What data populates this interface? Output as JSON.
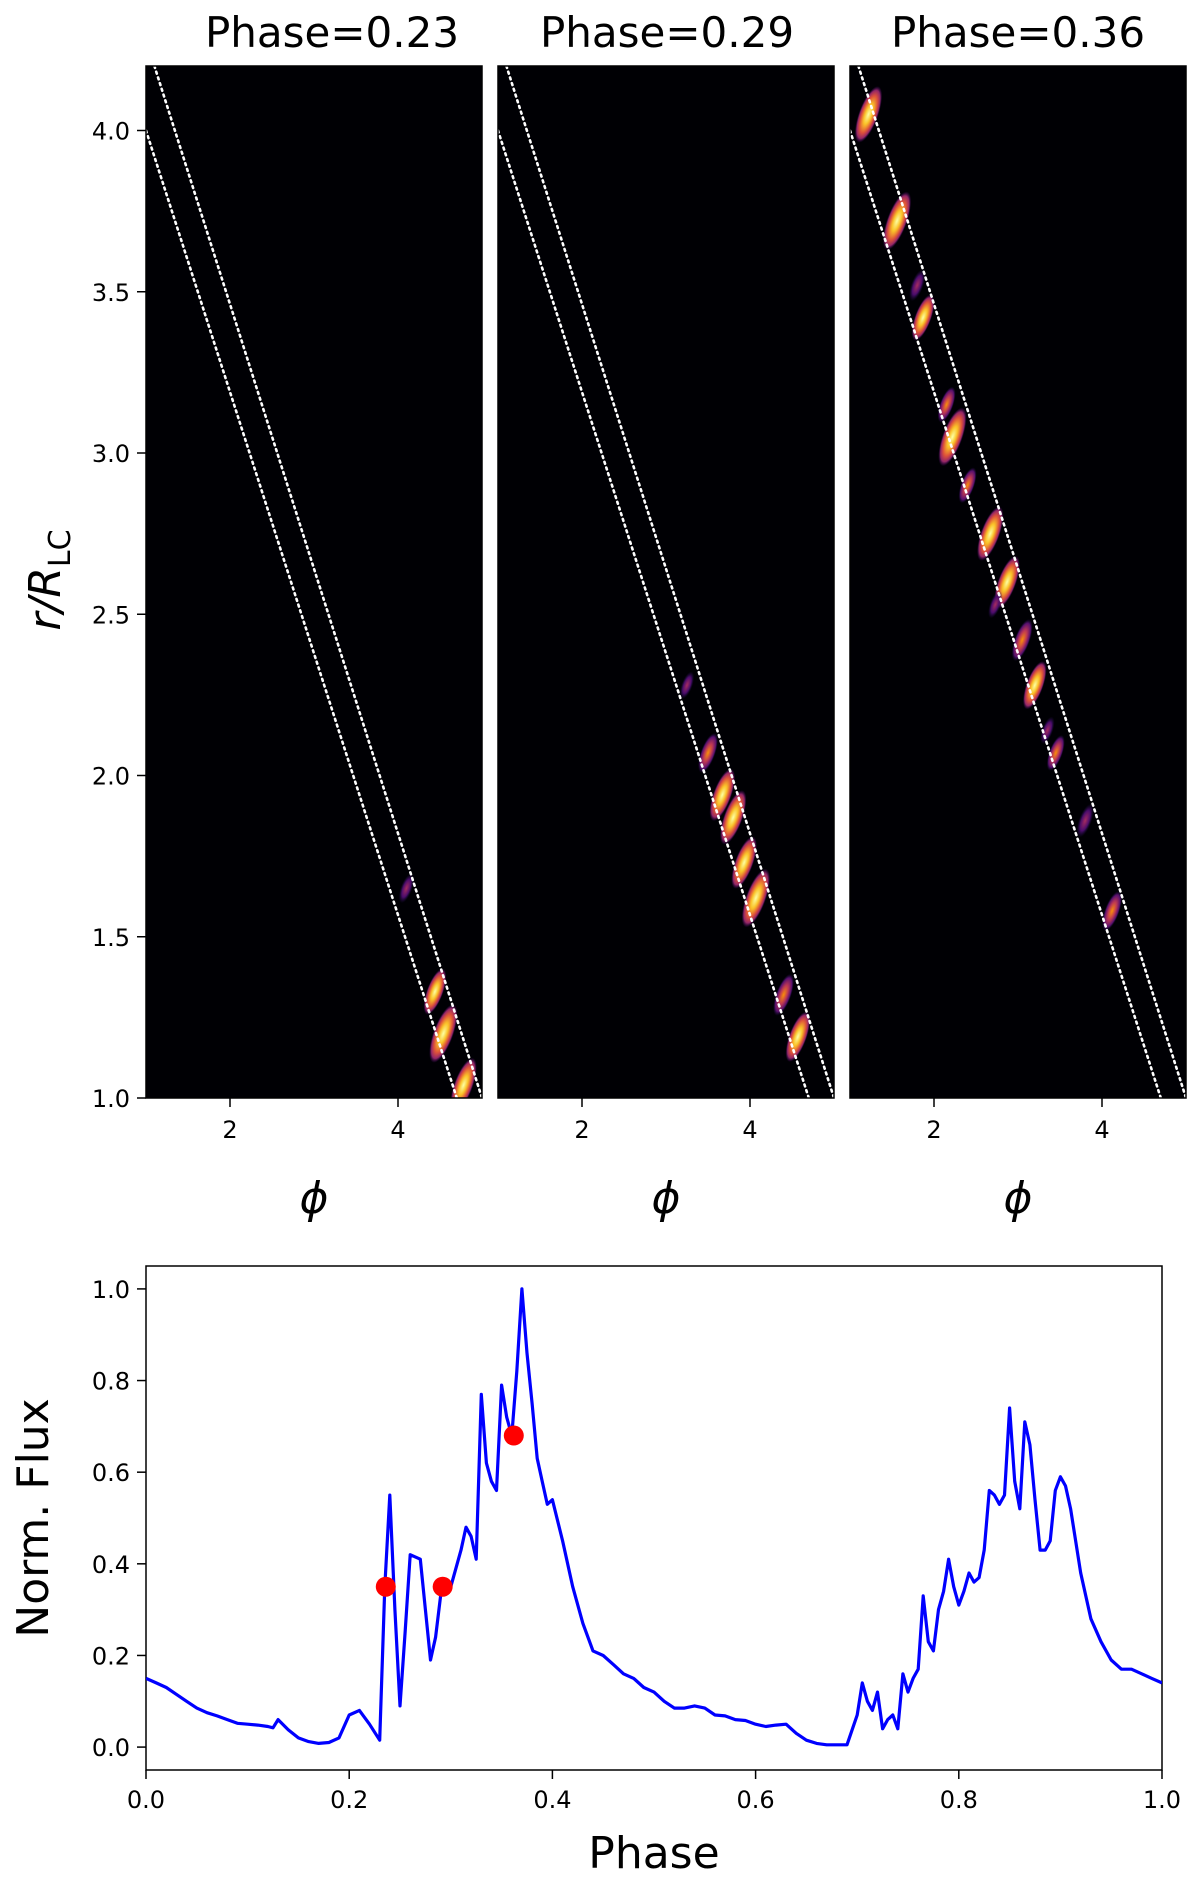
{
  "chart_data": [
    {
      "type": "heatmap",
      "title": "Phase=0.23",
      "xlabel": "ϕ",
      "ylabel_main": "r/R",
      "ylabel_sub": "LC",
      "xlim": [
        1.0,
        5.0
      ],
      "ylim": [
        1.0,
        4.2
      ],
      "xticks": [
        2,
        4
      ],
      "yticks": [
        1.0,
        1.5,
        2.0,
        2.5,
        3.0,
        3.5,
        4.0
      ],
      "ytick_labels": [
        "1.0",
        "1.5",
        "2.0",
        "2.5",
        "3.0",
        "3.5",
        "4.0"
      ],
      "background": "#000004",
      "guide_lines": [
        {
          "from": [
            1.1,
            4.2
          ],
          "to": [
            5.0,
            1.0
          ]
        },
        {
          "from": [
            1.0,
            4.0
          ],
          "to": [
            4.7,
            1.0
          ]
        }
      ],
      "hotspots": [
        {
          "phi": 4.1,
          "r": 1.65,
          "intensity": 0.3
        },
        {
          "phi": 4.44,
          "r": 1.33,
          "intensity": 0.7
        },
        {
          "phi": 4.54,
          "r": 1.2,
          "intensity": 1.0
        },
        {
          "phi": 4.78,
          "r": 1.04,
          "intensity": 0.9
        }
      ]
    },
    {
      "type": "heatmap",
      "title": "Phase=0.29",
      "xlabel": "ϕ",
      "xlim": [
        1.0,
        5.0
      ],
      "ylim": [
        1.0,
        4.2
      ],
      "xticks": [
        2,
        4
      ],
      "background": "#000004",
      "guide_lines": [
        {
          "from": [
            1.1,
            4.2
          ],
          "to": [
            5.0,
            1.0
          ]
        },
        {
          "from": [
            1.0,
            4.0
          ],
          "to": [
            4.7,
            1.0
          ]
        }
      ],
      "hotspots": [
        {
          "phi": 3.25,
          "r": 2.28,
          "intensity": 0.25
        },
        {
          "phi": 3.5,
          "r": 2.07,
          "intensity": 0.55
        },
        {
          "phi": 3.67,
          "r": 1.94,
          "intensity": 0.85
        },
        {
          "phi": 3.8,
          "r": 1.87,
          "intensity": 0.9
        },
        {
          "phi": 3.93,
          "r": 1.73,
          "intensity": 0.85
        },
        {
          "phi": 4.07,
          "r": 1.62,
          "intensity": 1.0
        },
        {
          "phi": 4.4,
          "r": 1.32,
          "intensity": 0.6
        },
        {
          "phi": 4.57,
          "r": 1.19,
          "intensity": 0.8
        }
      ]
    },
    {
      "type": "heatmap",
      "title": "Phase=0.36",
      "xlabel": "ϕ",
      "xlim": [
        1.0,
        5.0
      ],
      "ylim": [
        1.0,
        4.2
      ],
      "xticks": [
        2,
        4
      ],
      "background": "#000004",
      "guide_lines": [
        {
          "from": [
            1.1,
            4.2
          ],
          "to": [
            5.0,
            1.0
          ]
        },
        {
          "from": [
            1.0,
            4.0
          ],
          "to": [
            4.7,
            1.0
          ]
        }
      ],
      "hotspots": [
        {
          "phi": 1.22,
          "r": 4.05,
          "intensity": 0.95
        },
        {
          "phi": 1.56,
          "r": 3.72,
          "intensity": 1.0
        },
        {
          "phi": 1.8,
          "r": 3.52,
          "intensity": 0.35
        },
        {
          "phi": 1.87,
          "r": 3.42,
          "intensity": 0.7
        },
        {
          "phi": 2.15,
          "r": 3.15,
          "intensity": 0.45
        },
        {
          "phi": 2.22,
          "r": 3.05,
          "intensity": 1.0
        },
        {
          "phi": 2.4,
          "r": 2.9,
          "intensity": 0.45
        },
        {
          "phi": 2.67,
          "r": 2.75,
          "intensity": 0.9
        },
        {
          "phi": 2.87,
          "r": 2.6,
          "intensity": 0.85
        },
        {
          "phi": 2.73,
          "r": 2.53,
          "intensity": 0.25
        },
        {
          "phi": 3.05,
          "r": 2.42,
          "intensity": 0.6
        },
        {
          "phi": 3.2,
          "r": 2.28,
          "intensity": 0.75
        },
        {
          "phi": 3.35,
          "r": 2.14,
          "intensity": 0.25
        },
        {
          "phi": 3.45,
          "r": 2.07,
          "intensity": 0.45
        },
        {
          "phi": 3.8,
          "r": 1.86,
          "intensity": 0.4
        },
        {
          "phi": 4.12,
          "r": 1.58,
          "intensity": 0.55
        }
      ]
    },
    {
      "type": "line",
      "xlabel": "Phase",
      "ylabel": "Norm. Flux",
      "xlim": [
        0.0,
        1.0
      ],
      "ylim": [
        -0.05,
        1.05
      ],
      "xticks": [
        0.0,
        0.2,
        0.4,
        0.6,
        0.8,
        1.0
      ],
      "xtick_labels": [
        "0.0",
        "0.2",
        "0.4",
        "0.6",
        "0.8",
        "1.0"
      ],
      "yticks": [
        0.0,
        0.2,
        0.4,
        0.6,
        0.8,
        1.0
      ],
      "ytick_labels": [
        "0.0",
        "0.2",
        "0.4",
        "0.6",
        "0.8",
        "1.0"
      ],
      "line_color": "#0000ff",
      "marker_color": "#ff0000",
      "x": [
        0.0,
        0.01,
        0.02,
        0.03,
        0.04,
        0.05,
        0.06,
        0.07,
        0.08,
        0.09,
        0.1,
        0.11,
        0.12,
        0.125,
        0.13,
        0.14,
        0.15,
        0.16,
        0.17,
        0.18,
        0.19,
        0.2,
        0.21,
        0.22,
        0.23,
        0.235,
        0.24,
        0.245,
        0.25,
        0.255,
        0.26,
        0.27,
        0.275,
        0.28,
        0.285,
        0.29,
        0.3,
        0.31,
        0.315,
        0.32,
        0.325,
        0.33,
        0.335,
        0.34,
        0.345,
        0.35,
        0.355,
        0.36,
        0.365,
        0.37,
        0.375,
        0.38,
        0.385,
        0.39,
        0.395,
        0.4,
        0.41,
        0.42,
        0.43,
        0.44,
        0.45,
        0.46,
        0.47,
        0.48,
        0.49,
        0.5,
        0.51,
        0.52,
        0.53,
        0.54,
        0.55,
        0.56,
        0.57,
        0.58,
        0.59,
        0.6,
        0.61,
        0.62,
        0.63,
        0.64,
        0.65,
        0.66,
        0.67,
        0.68,
        0.69,
        0.7,
        0.705,
        0.71,
        0.715,
        0.72,
        0.725,
        0.73,
        0.735,
        0.74,
        0.745,
        0.75,
        0.755,
        0.76,
        0.765,
        0.77,
        0.775,
        0.78,
        0.785,
        0.79,
        0.795,
        0.8,
        0.805,
        0.81,
        0.815,
        0.82,
        0.825,
        0.83,
        0.835,
        0.84,
        0.845,
        0.85,
        0.855,
        0.86,
        0.865,
        0.87,
        0.875,
        0.88,
        0.885,
        0.89,
        0.895,
        0.9,
        0.905,
        0.91,
        0.92,
        0.93,
        0.94,
        0.95,
        0.96,
        0.97,
        0.98,
        0.99,
        1.0
      ],
      "y": [
        0.15,
        0.14,
        0.13,
        0.115,
        0.1,
        0.085,
        0.075,
        0.068,
        0.06,
        0.052,
        0.05,
        0.048,
        0.045,
        0.042,
        0.06,
        0.038,
        0.02,
        0.012,
        0.008,
        0.01,
        0.02,
        0.07,
        0.08,
        0.05,
        0.015,
        0.35,
        0.55,
        0.3,
        0.09,
        0.25,
        0.42,
        0.41,
        0.3,
        0.19,
        0.24,
        0.33,
        0.35,
        0.43,
        0.48,
        0.46,
        0.41,
        0.77,
        0.62,
        0.58,
        0.56,
        0.79,
        0.72,
        0.68,
        0.82,
        1.0,
        0.86,
        0.75,
        0.63,
        0.58,
        0.53,
        0.54,
        0.45,
        0.35,
        0.27,
        0.21,
        0.2,
        0.18,
        0.16,
        0.15,
        0.13,
        0.12,
        0.1,
        0.085,
        0.085,
        0.09,
        0.085,
        0.07,
        0.068,
        0.06,
        0.058,
        0.05,
        0.045,
        0.048,
        0.05,
        0.03,
        0.015,
        0.008,
        0.005,
        0.005,
        0.005,
        0.07,
        0.14,
        0.1,
        0.08,
        0.12,
        0.04,
        0.06,
        0.07,
        0.04,
        0.16,
        0.12,
        0.15,
        0.17,
        0.33,
        0.23,
        0.21,
        0.3,
        0.34,
        0.41,
        0.35,
        0.31,
        0.34,
        0.38,
        0.36,
        0.37,
        0.43,
        0.56,
        0.55,
        0.53,
        0.55,
        0.74,
        0.58,
        0.52,
        0.71,
        0.66,
        0.54,
        0.43,
        0.43,
        0.45,
        0.56,
        0.59,
        0.57,
        0.52,
        0.38,
        0.28,
        0.23,
        0.19,
        0.17,
        0.17,
        0.16,
        0.15,
        0.14
      ],
      "markers": [
        {
          "x": 0.236,
          "y": 0.35
        },
        {
          "x": 0.292,
          "y": 0.35
        },
        {
          "x": 0.362,
          "y": 0.68
        }
      ]
    }
  ]
}
